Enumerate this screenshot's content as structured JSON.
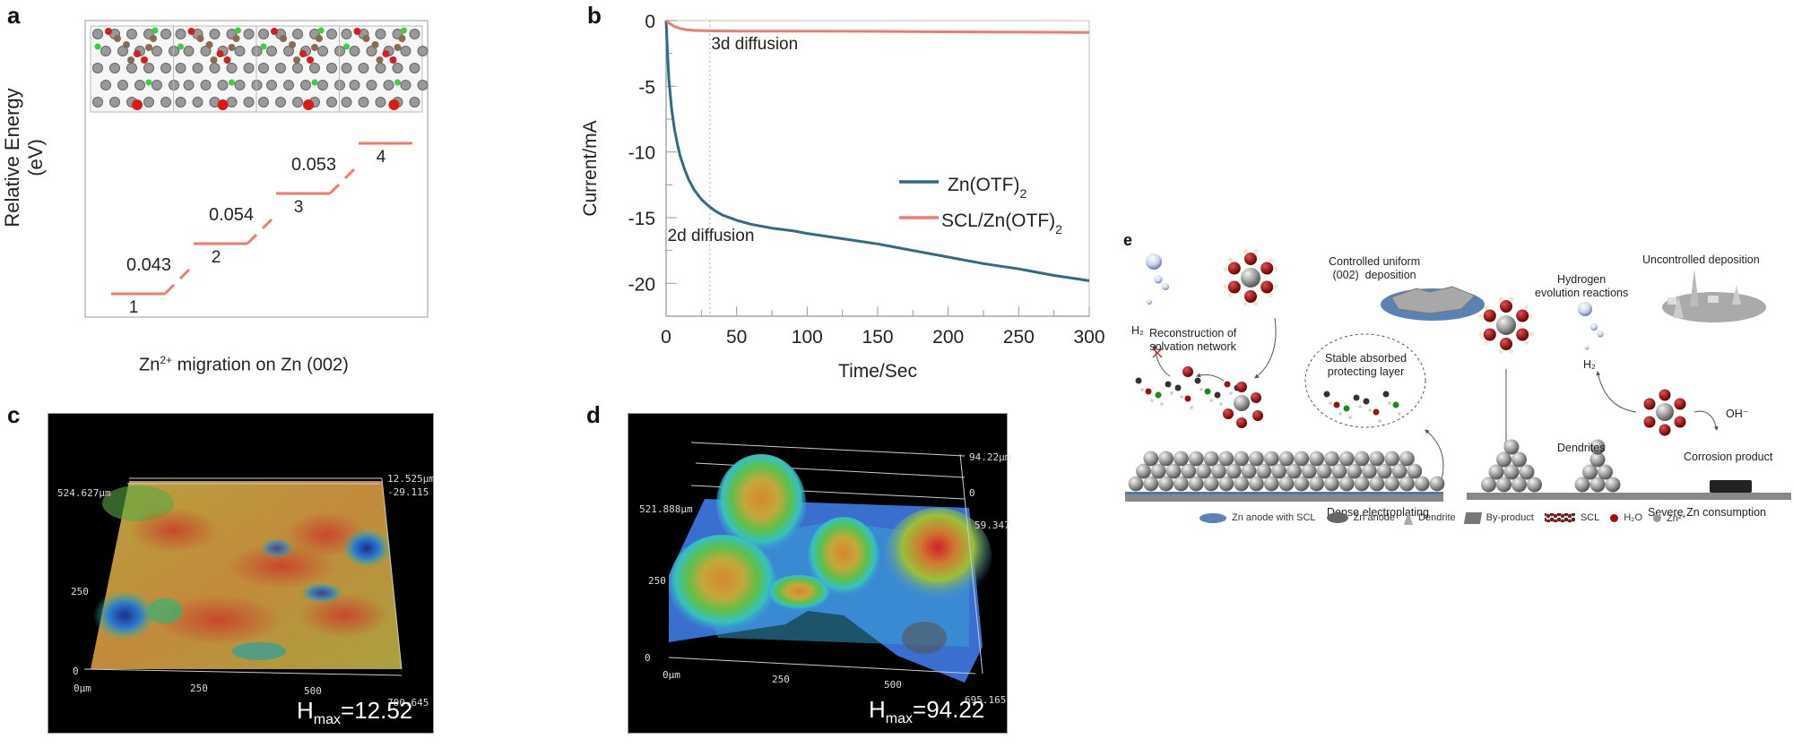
{
  "panels": {
    "a": {
      "letter": "a",
      "ylabel": "Relative Energy (eV)",
      "xlabel_main": "Zn",
      "xlabel_sup": "2+",
      "xlabel_rest": " migration on Zn (002)",
      "steps": [
        {
          "label": "1",
          "level": 0
        },
        {
          "label": "2",
          "level": 1
        },
        {
          "label": "3",
          "level": 2
        },
        {
          "label": "4",
          "level": 3
        }
      ],
      "barriers": [
        "0.043",
        "0.054",
        "0.053"
      ],
      "step_color": "#f07a6e"
    },
    "b": {
      "letter": "b"
    },
    "c": {
      "letter": "c",
      "y_labels": [
        "524.627µm",
        "250",
        "0"
      ],
      "x_labels": [
        "0µm",
        "250",
        "500",
        "700.645"
      ],
      "z_labels": [
        "12.525µm",
        "-29.115"
      ],
      "hmax_prefix": "H",
      "hmax_sub": "max",
      "hmax_value": "=12.52 µm"
    },
    "d": {
      "letter": "d",
      "y_labels": [
        "521.888µm",
        "250",
        "0"
      ],
      "x_labels": [
        "0µm",
        "250",
        "500",
        "695.165"
      ],
      "z_labels": [
        "94.22µm",
        "0",
        "59.347"
      ],
      "hmax_prefix": "H",
      "hmax_sub": "max",
      "hmax_value": "=94.22 µm"
    },
    "e": {
      "letter": "e",
      "left": {
        "h2": "H₂",
        "reconstruction": "Reconstruction of\nsolvation network",
        "controlled": "Controlled uniform\n(002)  deposition",
        "stable": "Stable absorbed\nprotecting layer",
        "caption": "Dense electroplating"
      },
      "right": {
        "uncontrolled": "Uncontrolled deposition",
        "hydrogen": "Hydrogen\nevolution reactions",
        "h2": "H₂",
        "oh": "OH⁻",
        "dendrites": "Dendrites",
        "corrosion": "Corrosion product",
        "caption": "Severe Zn consumption"
      },
      "legend": [
        {
          "icon": "zn-anode-scl-icon",
          "label": "Zn anode with SCL"
        },
        {
          "icon": "zn-anode-icon",
          "label": "Zn anode"
        },
        {
          "icon": "dendrite-icon",
          "label": "Dendrite"
        },
        {
          "icon": "by-product-icon",
          "label": "By-product"
        },
        {
          "icon": "scl-molecule-icon",
          "label": "SCL"
        },
        {
          "icon": "water-icon",
          "label": "H₂O"
        },
        {
          "icon": "zn-ion-icon",
          "label": "Zn²⁺"
        }
      ]
    }
  },
  "chart_data": [
    {
      "type": "line",
      "title": "",
      "xlabel": "Time/Sec",
      "ylabel": "Current/mA",
      "xlim": [
        0,
        300
      ],
      "ylim": [
        -22.5,
        0
      ],
      "xticks": [
        0,
        50,
        100,
        150,
        200,
        250,
        300
      ],
      "yticks": [
        0,
        -5,
        -10,
        -15,
        -20
      ],
      "grid": false,
      "legend_position": "center-right",
      "annotations": [
        {
          "text": "3d diffusion",
          "x": 32,
          "y": -1.7
        },
        {
          "text": "2d diffusion",
          "x": 1,
          "y": -16.3
        },
        {
          "type": "vline",
          "x": 31,
          "style": "dotted"
        }
      ],
      "series": [
        {
          "name": "Zn(OTF)₂",
          "name_main": "Zn(OTF)",
          "name_sub": "2",
          "color": "#2f6b86",
          "x": [
            0,
            1,
            2,
            4,
            6,
            8,
            10,
            13,
            16,
            20,
            25,
            30,
            35,
            40,
            50,
            60,
            75,
            90,
            100,
            125,
            150,
            175,
            200,
            225,
            250,
            275,
            300
          ],
          "y": [
            0,
            -2.5,
            -4.5,
            -6.8,
            -8.3,
            -9.4,
            -10.3,
            -11.3,
            -12.1,
            -12.9,
            -13.6,
            -14.1,
            -14.5,
            -14.8,
            -15.2,
            -15.5,
            -15.8,
            -16.0,
            -16.2,
            -16.6,
            -17.0,
            -17.5,
            -18.0,
            -18.5,
            -18.9,
            -19.4,
            -19.8
          ]
        },
        {
          "name": "SCL/Zn(OTF)₂",
          "name_main": "SCL/Zn(OTF)",
          "name_sub": "2",
          "color": "#f07a6e",
          "x": [
            0,
            3,
            6,
            10,
            15,
            20,
            30,
            50,
            100,
            150,
            200,
            250,
            300
          ],
          "y": [
            0,
            -0.25,
            -0.45,
            -0.6,
            -0.7,
            -0.75,
            -0.78,
            -0.8,
            -0.8,
            -0.82,
            -0.85,
            -0.88,
            -0.9
          ]
        }
      ]
    },
    {
      "type": "line",
      "title": "Zn2+ migration on Zn (002)",
      "ylabel": "Relative Energy (eV)",
      "categories": [
        "1",
        "2",
        "3",
        "4"
      ],
      "barriers_eV": [
        0.043,
        0.054,
        0.053
      ]
    }
  ]
}
